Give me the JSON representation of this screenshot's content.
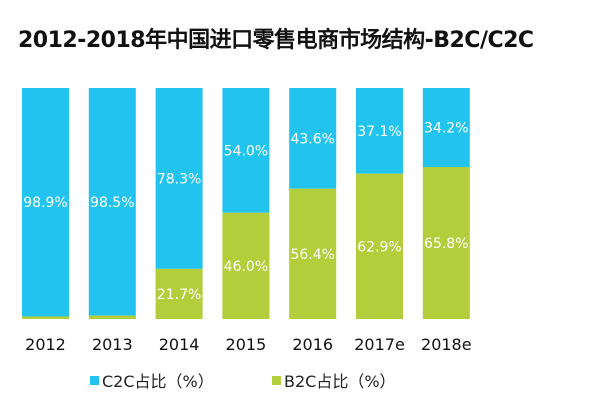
{
  "chart_data": {
    "type": "bar",
    "stacked": true,
    "title": "2012-2018年中国进口零售电商市场结构-B2C/C2C",
    "categories": [
      "2012",
      "2013",
      "2014",
      "2015",
      "2016",
      "2017e",
      "2018e"
    ],
    "series": [
      {
        "name": "C2C占比（%）",
        "color": "#22c4ef",
        "values": [
          98.9,
          98.5,
          78.3,
          54.0,
          43.6,
          37.1,
          34.2
        ],
        "labels": [
          "98.9%",
          "98.5%",
          "78.3%",
          "54.0%",
          "43.6%",
          "37.1%",
          "34.2%"
        ]
      },
      {
        "name": "B2C占比（%）",
        "color": "#b4cd3a",
        "values": [
          1.1,
          1.5,
          21.7,
          46.0,
          56.4,
          62.9,
          65.8
        ],
        "labels": [
          "",
          "",
          "21.7%",
          "46.0%",
          "56.4%",
          "62.9%",
          "65.8%"
        ]
      }
    ],
    "ylim": [
      0,
      100
    ],
    "grid": false,
    "legend": "bottom"
  }
}
